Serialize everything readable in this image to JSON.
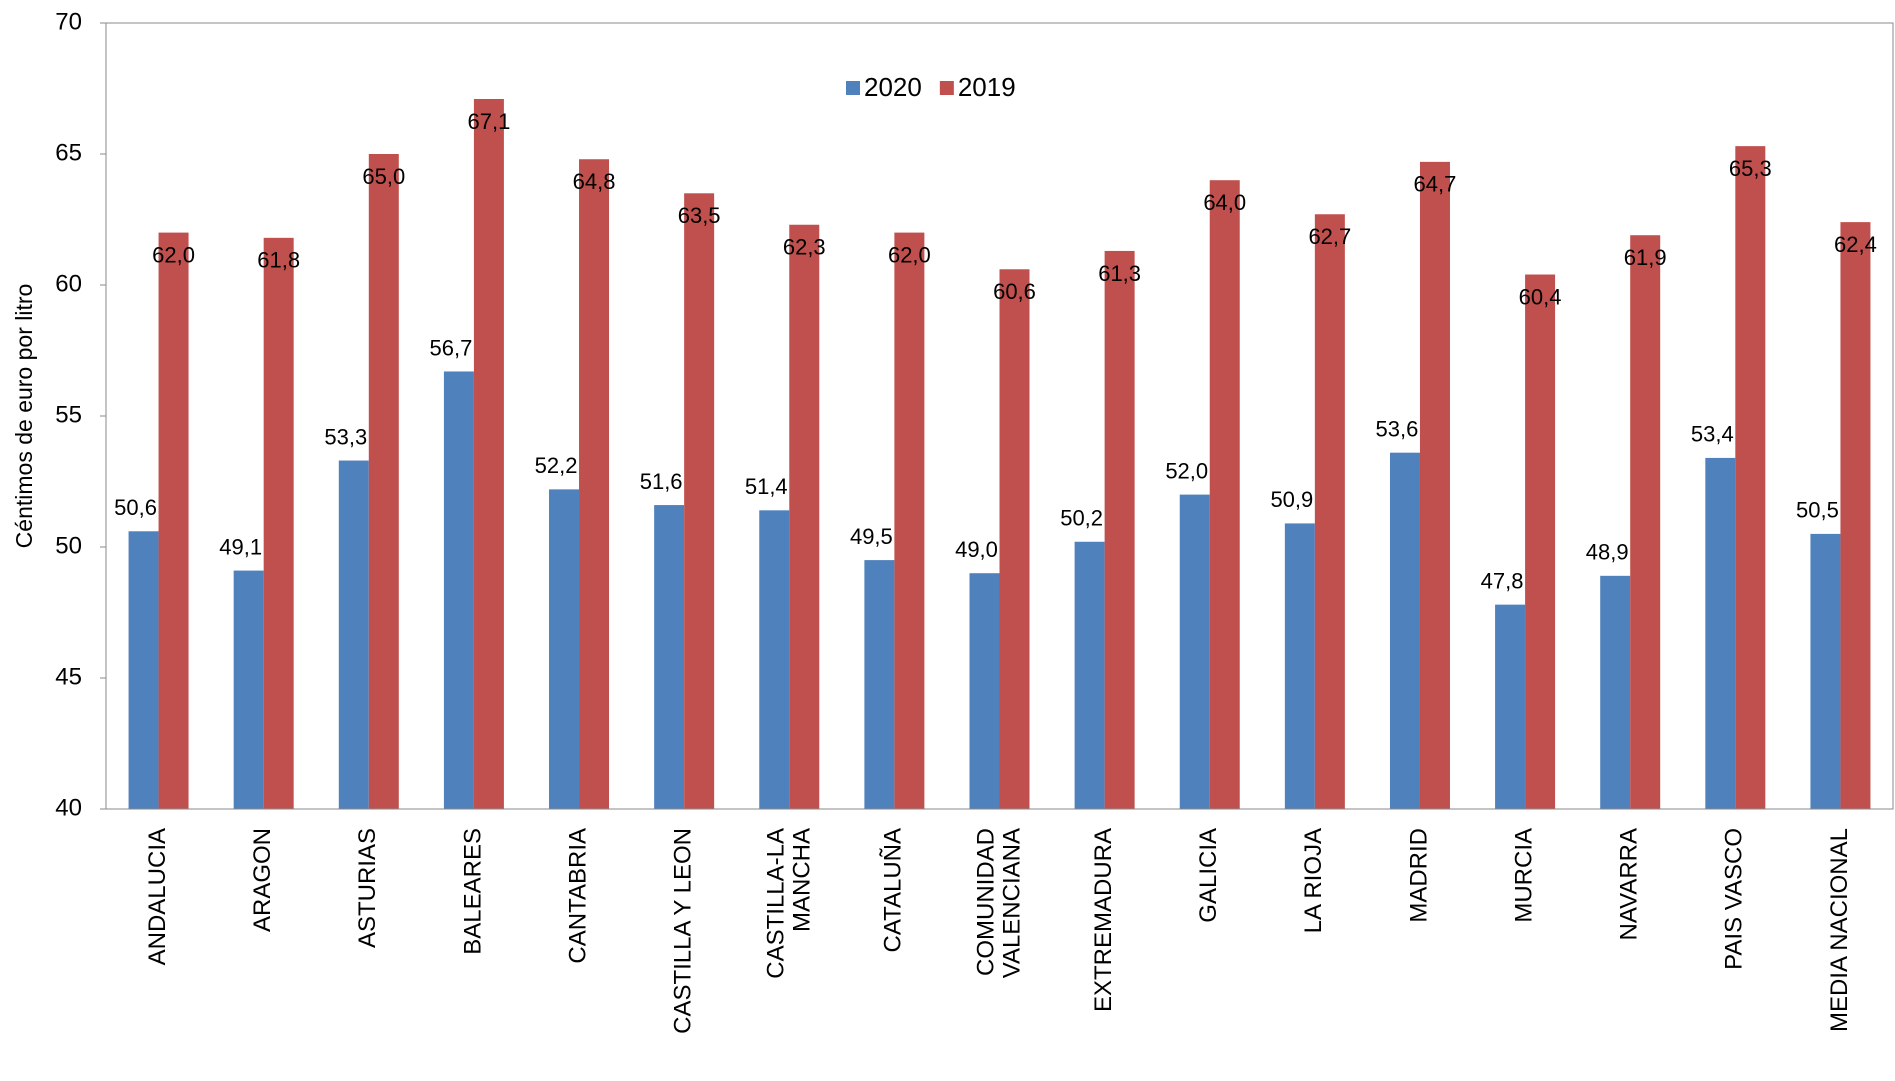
{
  "chart_data": {
    "type": "bar",
    "y_label": "Céntimos de euro por litro",
    "categories": [
      "ANDALUCIA",
      "ARAGON",
      "ASTURIAS",
      "BALEARES",
      "CANTABRIA",
      "CASTILLA Y LEON",
      "CASTILLA-LA\nMANCHA",
      "CATALUÑA",
      "COMUNIDAD\nVALENCIANA",
      "EXTREMADURA",
      "GALICIA",
      "LA RIOJA",
      "MADRID",
      "MURCIA",
      "NAVARRA",
      "PAIS VASCO",
      "MEDIA NACIONAL"
    ],
    "series": [
      {
        "name": "2020",
        "color": "#4f81bd",
        "values": [
          50.6,
          49.1,
          53.3,
          56.7,
          52.2,
          51.6,
          51.4,
          49.5,
          49.0,
          50.2,
          52.0,
          50.9,
          53.6,
          47.8,
          48.9,
          53.4,
          50.5
        ],
        "value_labels": [
          "50,6",
          "49,1",
          "53,3",
          "56,7",
          "52,2",
          "51,6",
          "51,4",
          "49,5",
          "49,0",
          "50,2",
          "52,0",
          "50,9",
          "53,6",
          "47,8",
          "48,9",
          "53,4",
          "50,5"
        ]
      },
      {
        "name": "2019",
        "color": "#c0504d",
        "values": [
          62.0,
          61.8,
          65.0,
          67.1,
          64.8,
          63.5,
          62.3,
          62.0,
          60.6,
          61.3,
          64.0,
          62.7,
          64.7,
          60.4,
          61.9,
          65.3,
          62.4
        ],
        "value_labels": [
          "62,0",
          "61,8",
          "65,0",
          "67,1",
          "64,8",
          "63,5",
          "62,3",
          "62,0",
          "60,6",
          "61,3",
          "64,0",
          "62,7",
          "64,7",
          "60,4",
          "61,9",
          "65,3",
          "62,4"
        ]
      }
    ],
    "ylim": [
      40,
      70
    ],
    "yticks": [
      40,
      45,
      50,
      55,
      60,
      65,
      70
    ],
    "grid": false,
    "legend": "top"
  }
}
